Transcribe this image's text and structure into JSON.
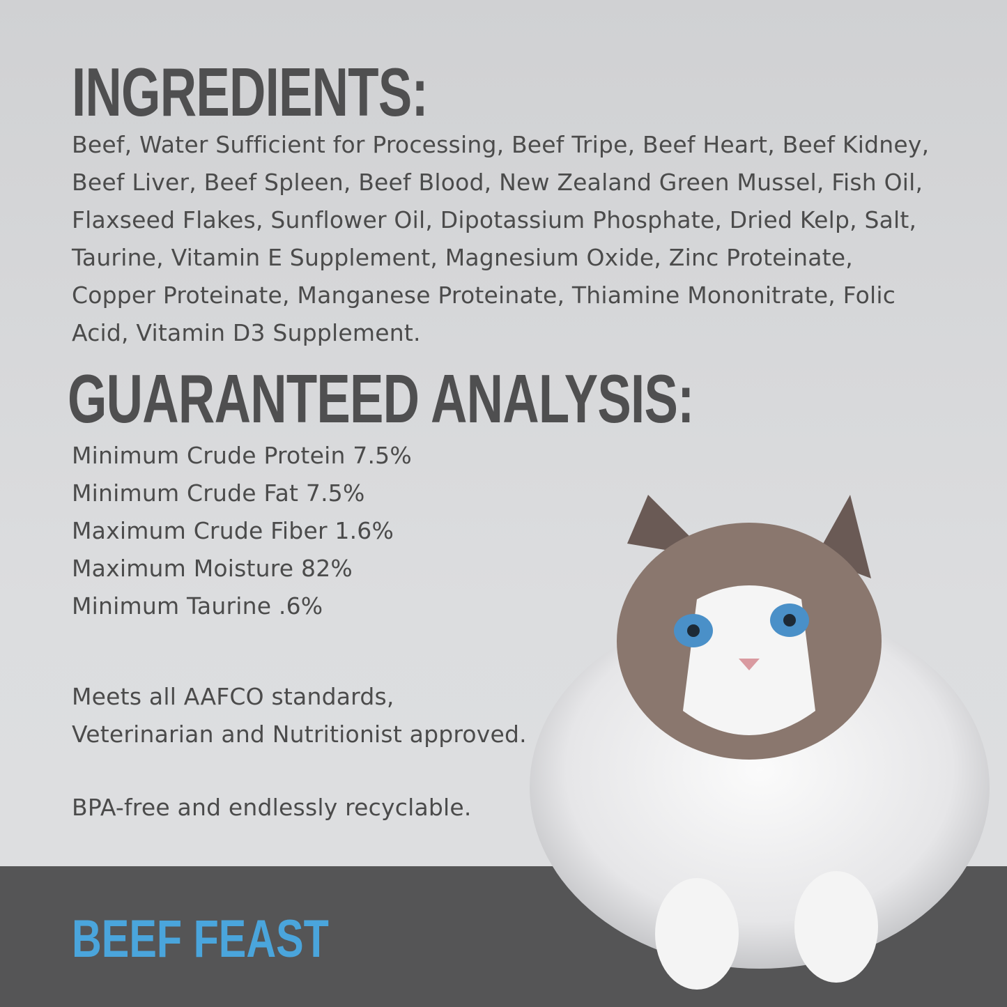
{
  "ingredients": {
    "heading": "INGREDIENTS:",
    "lines": [
      "Beef, Water Sufficient for Processing, Beef Tripe, Beef Heart, Beef Kidney,",
      "Beef Liver, Beef Spleen, Beef Blood, New Zealand Green Mussel, Fish Oil,",
      "Flaxseed Flakes, Sunflower Oil, Dipotassium Phosphate, Dried Kelp, Salt,",
      "Taurine, Vitamin E Supplement, Magnesium Oxide, Zinc Proteinate,",
      "Copper Proteinate, Manganese Proteinate, Thiamine Mononitrate, Folic",
      "Acid, Vitamin D3 Supplement."
    ]
  },
  "analysis": {
    "heading": "GUARANTEED ANALYSIS:",
    "lines": [
      "Minimum Crude Protein 7.5%",
      "Minimum Crude Fat 7.5%",
      "Maximum Crude Fiber 1.6%",
      "Maximum Moisture 82%",
      "Minimum Taurine .6%"
    ]
  },
  "claims": {
    "standards": [
      "Meets all AAFCO standards,",
      "Veterinarian and Nutritionist approved."
    ],
    "packaging": "BPA-free and endlessly recyclable."
  },
  "footer": {
    "flavor": "BEEF FEAST"
  },
  "colors": {
    "background": "#d8d9db",
    "text": "#4b4b4b",
    "footer_bar": "#555556",
    "flavor": "#4aa5dc"
  },
  "image": {
    "subject": "ragdoll-cat-photo"
  }
}
